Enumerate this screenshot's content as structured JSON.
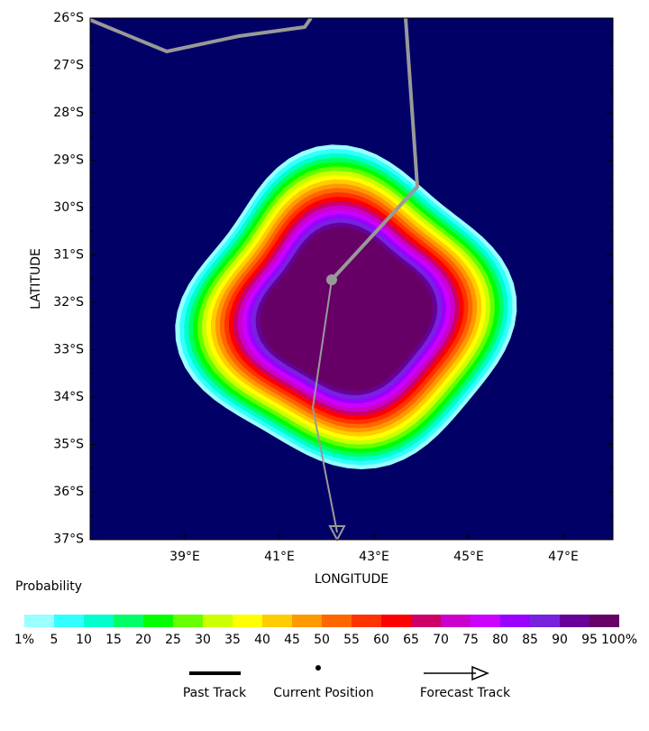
{
  "map": {
    "x_label": "LONGITUDE",
    "y_label": "LATITUDE",
    "x_ticks": [
      "39°E",
      "41°E",
      "43°E",
      "45°E",
      "47°E"
    ],
    "y_ticks": [
      "26°S",
      "27°S",
      "28°S",
      "29°S",
      "30°S",
      "31°S",
      "32°S",
      "33°S",
      "34°S",
      "35°S",
      "36°S",
      "37°S"
    ],
    "background": "#000066"
  },
  "colorbar": {
    "title": "Probability",
    "labels": [
      "1%",
      "5",
      "10",
      "15",
      "20",
      "25",
      "30",
      "35",
      "40",
      "45",
      "50",
      "55",
      "60",
      "65",
      "70",
      "75",
      "80",
      "85",
      "90",
      "95",
      "100%"
    ],
    "colors": [
      "#99ffff",
      "#33ffff",
      "#00ffcc",
      "#00ff66",
      "#00ff00",
      "#66ff00",
      "#ccff00",
      "#ffff00",
      "#ffcc00",
      "#ff9900",
      "#ff6600",
      "#ff3300",
      "#ff0000",
      "#cc0066",
      "#cc00cc",
      "#cc00ff",
      "#9900ff",
      "#7722dd",
      "#660099",
      "#660066"
    ]
  },
  "legend": {
    "past": "Past Track",
    "current": "Current Position",
    "forecast": "Forecast Track"
  }
}
